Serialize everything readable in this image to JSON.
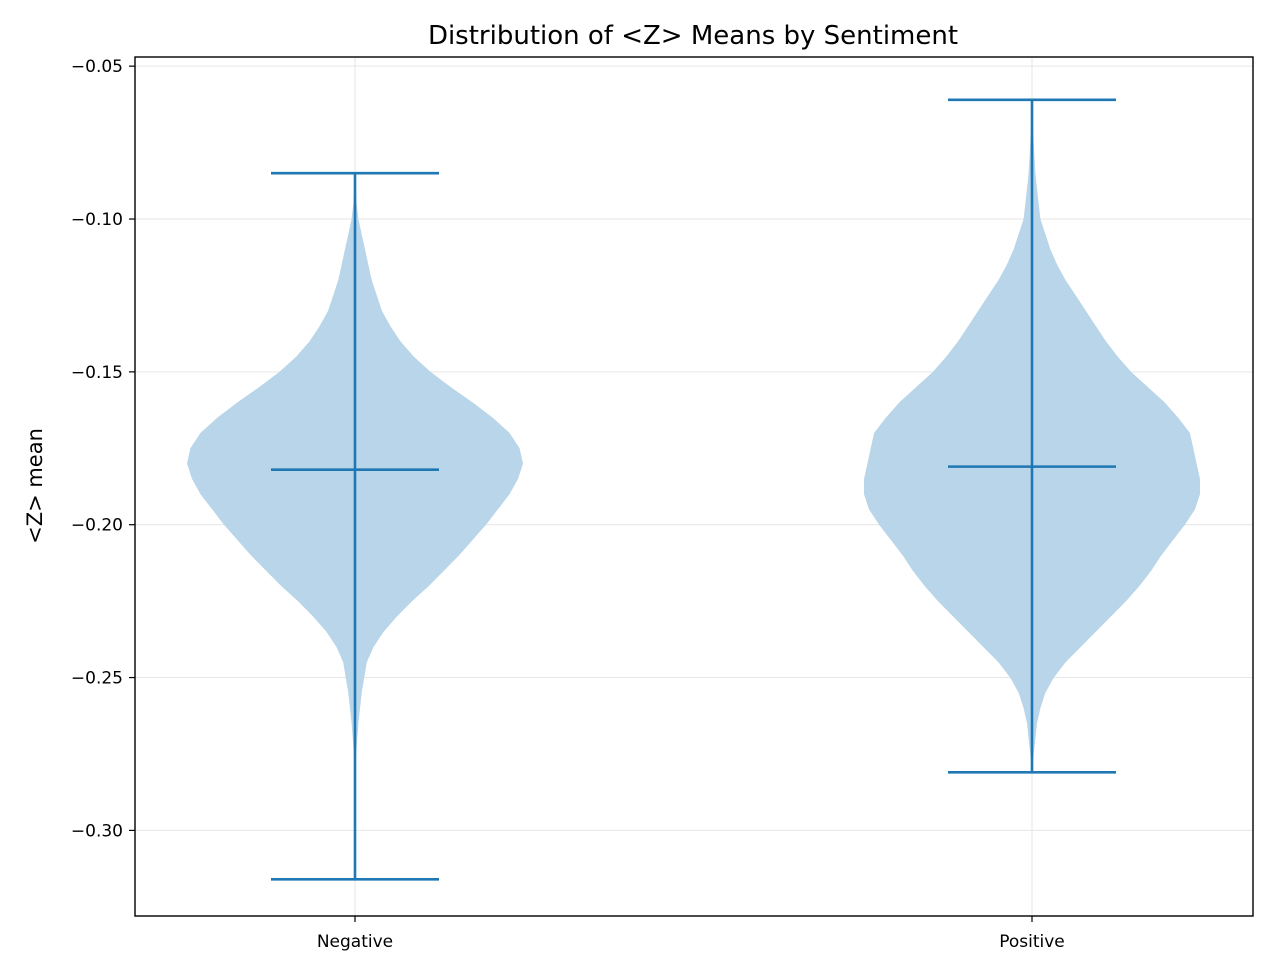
{
  "chart_data": {
    "type": "violin",
    "title": "Distribution of <Z> Means by Sentiment",
    "xlabel": "",
    "ylabel": "<Z> mean",
    "categories": [
      "Negative",
      "Positive"
    ],
    "ylim": [
      -0.328,
      -0.047
    ],
    "yticks": [
      -0.05,
      -0.1,
      -0.15,
      -0.2,
      -0.25,
      -0.3
    ],
    "ytick_labels": [
      "−0.05",
      "−0.10",
      "−0.15",
      "−0.20",
      "−0.25",
      "−0.30"
    ],
    "grid": true,
    "colors": {
      "body": "#b9d5e9",
      "line": "#1f77b4",
      "grid": "#e6e6e6",
      "axis": "#000000"
    },
    "series": [
      {
        "category": "Negative",
        "min": -0.316,
        "max": -0.085,
        "mean": -0.182,
        "density": [
          [
            -0.316,
            0.0
          ],
          [
            -0.28,
            0.0
          ],
          [
            -0.265,
            0.02
          ],
          [
            -0.255,
            0.04
          ],
          [
            -0.245,
            0.07
          ],
          [
            -0.24,
            0.11
          ],
          [
            -0.235,
            0.17
          ],
          [
            -0.23,
            0.25
          ],
          [
            -0.225,
            0.34
          ],
          [
            -0.22,
            0.44
          ],
          [
            -0.215,
            0.53
          ],
          [
            -0.21,
            0.62
          ],
          [
            -0.205,
            0.7
          ],
          [
            -0.2,
            0.78
          ],
          [
            -0.195,
            0.85
          ],
          [
            -0.19,
            0.92
          ],
          [
            -0.185,
            0.97
          ],
          [
            -0.18,
            1.0
          ],
          [
            -0.175,
            0.98
          ],
          [
            -0.17,
            0.92
          ],
          [
            -0.165,
            0.82
          ],
          [
            -0.16,
            0.7
          ],
          [
            -0.155,
            0.57
          ],
          [
            -0.15,
            0.45
          ],
          [
            -0.145,
            0.35
          ],
          [
            -0.14,
            0.27
          ],
          [
            -0.135,
            0.21
          ],
          [
            -0.13,
            0.16
          ],
          [
            -0.125,
            0.13
          ],
          [
            -0.12,
            0.1
          ],
          [
            -0.115,
            0.08
          ],
          [
            -0.11,
            0.06
          ],
          [
            -0.105,
            0.04
          ],
          [
            -0.1,
            0.02
          ],
          [
            -0.095,
            0.01
          ],
          [
            -0.085,
            0.0
          ]
        ]
      },
      {
        "category": "Positive",
        "min": -0.281,
        "max": -0.061,
        "mean": -0.181,
        "density": [
          [
            -0.281,
            0.0
          ],
          [
            -0.275,
            0.01
          ],
          [
            -0.27,
            0.02
          ],
          [
            -0.265,
            0.03
          ],
          [
            -0.26,
            0.05
          ],
          [
            -0.255,
            0.08
          ],
          [
            -0.25,
            0.13
          ],
          [
            -0.245,
            0.2
          ],
          [
            -0.24,
            0.29
          ],
          [
            -0.235,
            0.38
          ],
          [
            -0.23,
            0.47
          ],
          [
            -0.225,
            0.56
          ],
          [
            -0.22,
            0.64
          ],
          [
            -0.215,
            0.71
          ],
          [
            -0.21,
            0.77
          ],
          [
            -0.205,
            0.84
          ],
          [
            -0.2,
            0.91
          ],
          [
            -0.195,
            0.97
          ],
          [
            -0.19,
            1.0
          ],
          [
            -0.185,
            1.0
          ],
          [
            -0.18,
            0.98
          ],
          [
            -0.175,
            0.96
          ],
          [
            -0.17,
            0.94
          ],
          [
            -0.165,
            0.87
          ],
          [
            -0.16,
            0.79
          ],
          [
            -0.155,
            0.69
          ],
          [
            -0.15,
            0.59
          ],
          [
            -0.145,
            0.51
          ],
          [
            -0.14,
            0.44
          ],
          [
            -0.135,
            0.38
          ],
          [
            -0.13,
            0.32
          ],
          [
            -0.125,
            0.26
          ],
          [
            -0.12,
            0.2
          ],
          [
            -0.115,
            0.15
          ],
          [
            -0.11,
            0.11
          ],
          [
            -0.105,
            0.08
          ],
          [
            -0.1,
            0.05
          ],
          [
            -0.095,
            0.04
          ],
          [
            -0.09,
            0.03
          ],
          [
            -0.085,
            0.02
          ],
          [
            -0.075,
            0.01
          ],
          [
            -0.061,
            0.0
          ]
        ]
      }
    ]
  }
}
